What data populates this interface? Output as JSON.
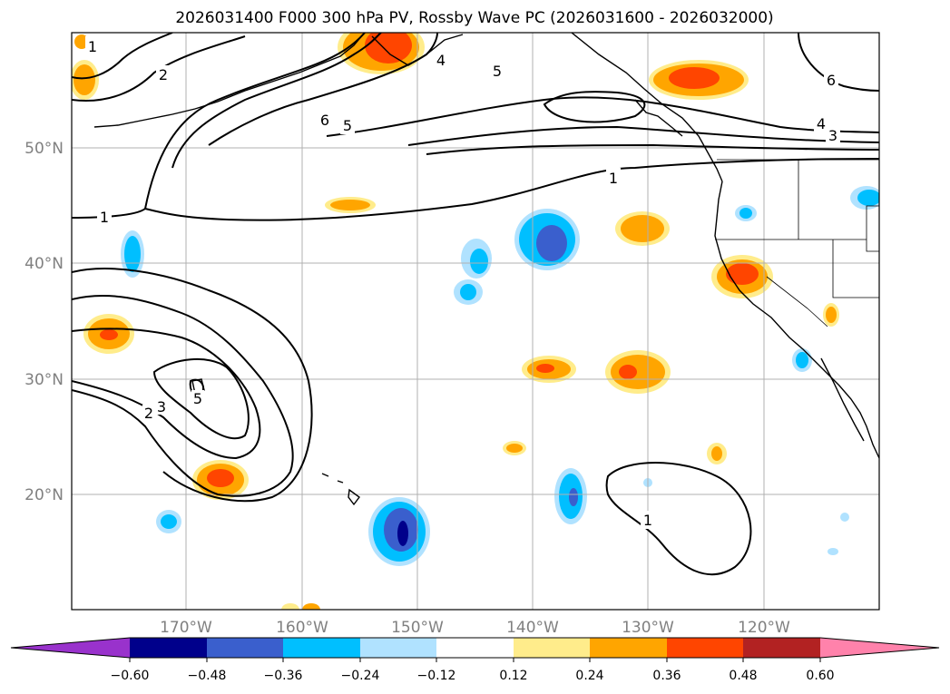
{
  "title": "2026031400 F000 300 hPa PV, Rossby Wave PC (2026031600 - 2026032000)",
  "lat_ticks": [
    "50°N",
    "40°N",
    "30°N",
    "20°N"
  ],
  "lon_ticks": [
    "170°W",
    "160°W",
    "150°W",
    "140°W",
    "130°W",
    "120°W"
  ],
  "contour_labels": [
    "1",
    "2",
    "4",
    "5",
    "6",
    "6",
    "5",
    "4",
    "3",
    "1",
    "1",
    "2",
    "3",
    "5",
    "1"
  ],
  "colorbar": {
    "ticks": [
      "−0.60",
      "−0.48",
      "−0.36",
      "−0.24",
      "−0.12",
      "0.12",
      "0.24",
      "0.36",
      "0.48",
      "0.60"
    ],
    "colors": [
      "#9932cc",
      "#00008b",
      "#3a5fcd",
      "#00bfff",
      "#b0e2ff",
      "#ffffff",
      "#ffec8b",
      "#ffa500",
      "#ff4500",
      "#b22222",
      "#ff82ab"
    ]
  },
  "colors": {
    "shade_pos1": "#ffec8b",
    "shade_pos2": "#ffa500",
    "shade_pos3": "#ff4500",
    "shade_neg1": "#b0e2ff",
    "shade_neg2": "#00bfff",
    "shade_neg3": "#3a5fcd",
    "shade_neg4": "#00008b"
  }
}
